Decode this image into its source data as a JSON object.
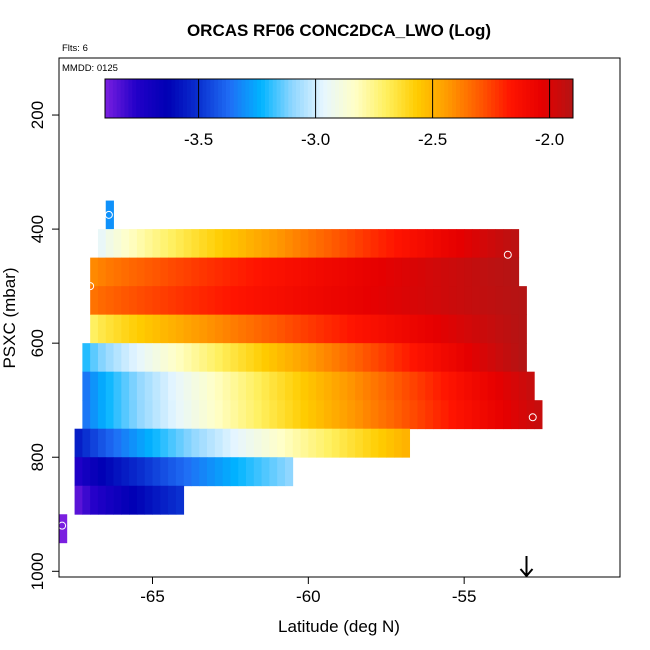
{
  "chart_data": {
    "type": "heatmap",
    "title": "ORCAS RF06 CONC2DCA_LWO (Log)",
    "flts_label": "Flts: 6",
    "mmdd_label": "MMDD: 0125",
    "xlabel": "Latitude (deg N)",
    "ylabel": "PSXC (mbar)",
    "xlim": [
      -68.0,
      -50.0
    ],
    "ylim": [
      1010,
      100
    ],
    "y_inverted": true,
    "x_ticks": [
      -65,
      -60,
      -55
    ],
    "x_tick_labels": [
      "-65",
      "-60",
      "-55"
    ],
    "y_ticks": [
      200,
      400,
      600,
      800,
      1000
    ],
    "y_tick_labels": [
      "200",
      "400",
      "600",
      "800",
      "1000"
    ],
    "colorbar": {
      "range": [
        -3.9,
        -1.9
      ],
      "ticks": [
        -3.5,
        -3.0,
        -2.5,
        -2.0
      ],
      "tick_labels": [
        "-3.5",
        "-3.0",
        "-2.5",
        "-2.0"
      ],
      "colors": [
        "#7a1fe0",
        "#2200c8",
        "#0000b4",
        "#0a30d0",
        "#1f6ef5",
        "#00b4ff",
        "#8fd6ff",
        "#e6f6ff",
        "#ffffc8",
        "#fff060",
        "#ffcc00",
        "#ff9900",
        "#ff5a00",
        "#ff1400",
        "#e60000",
        "#b41414"
      ]
    },
    "grid": false,
    "cell_width_lat": 0.25,
    "cell_height_mbar": 50,
    "rows": [
      {
        "p": 375,
        "x_start": -66.5,
        "x_end": -66.25,
        "v_start": -3.3,
        "v_end": -3.3
      },
      {
        "p": 425,
        "x_start": -66.75,
        "x_end": -53.25,
        "v_start": -2.95,
        "v_end": -1.92
      },
      {
        "p": 475,
        "x_start": -67.0,
        "x_end": -53.25,
        "v_start": -2.4,
        "v_end": -1.9
      },
      {
        "p": 525,
        "x_start": -67.0,
        "x_end": -53.0,
        "v_start": -2.35,
        "v_end": -1.9
      },
      {
        "p": 575,
        "x_start": -67.0,
        "x_end": -53.0,
        "v_start": -2.7,
        "v_end": -1.9
      },
      {
        "p": 625,
        "x_start": -67.25,
        "x_end": -53.0,
        "v_start": -3.2,
        "v_end": -1.9
      },
      {
        "p": 675,
        "x_start": -67.25,
        "x_end": -52.75,
        "v_start": -3.35,
        "v_end": -1.95
      },
      {
        "p": 725,
        "x_start": -67.25,
        "x_end": -52.5,
        "v_start": -3.35,
        "v_end": -1.95
      },
      {
        "p": 775,
        "x_start": -67.5,
        "x_end": -56.75,
        "v_start": -3.55,
        "v_end": -2.5
      },
      {
        "p": 825,
        "x_start": -67.5,
        "x_end": -60.5,
        "v_start": -3.75,
        "v_end": -3.1
      },
      {
        "p": 875,
        "x_start": -67.5,
        "x_end": -64.0,
        "v_start": -3.85,
        "v_end": -3.5
      },
      {
        "p": 925,
        "x_start": -68.0,
        "x_end": -67.75,
        "v_start": -3.9,
        "v_end": -3.9
      }
    ],
    "markers": [
      {
        "lat": -66.4,
        "p": 375
      },
      {
        "lat": -53.6,
        "p": 445
      },
      {
        "lat": -67.0,
        "p": 500
      },
      {
        "lat": -52.8,
        "p": 730
      },
      {
        "lat": -67.9,
        "p": 920
      }
    ],
    "arrow": {
      "lat": -53.0,
      "direction": "down"
    }
  }
}
